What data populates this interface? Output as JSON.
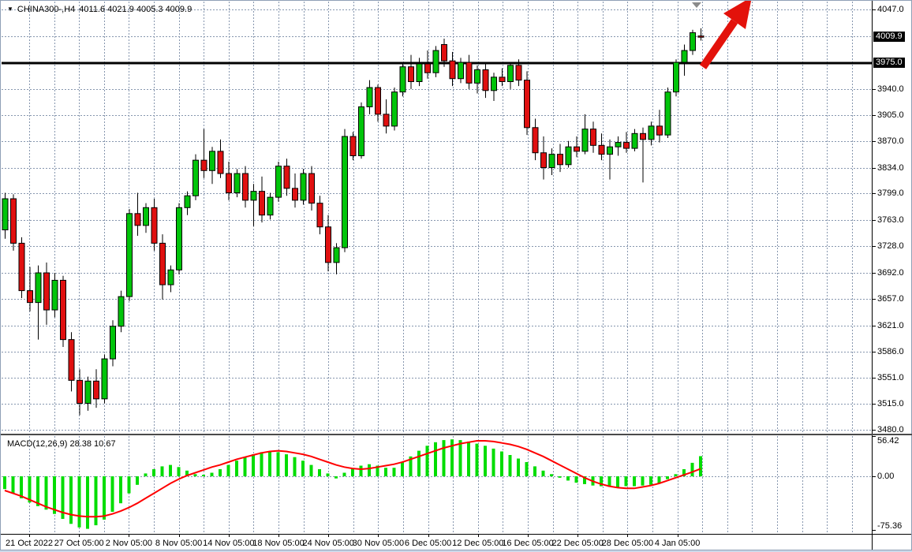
{
  "header": {
    "symbol": "CHINA300-,H4",
    "ohlc_text": "4011.6 4021.9 4005.3 4009.9"
  },
  "price_axis": {
    "current_tag": "4009.9",
    "line_tag": "3975.0",
    "tick_values": [
      4047.0,
      3940.0,
      3905.0,
      3870.0,
      3834.0,
      3799.0,
      3763.0,
      3728.0,
      3692.0,
      3657.0,
      3621.0,
      3586.0,
      3551.0,
      3515.0,
      3480.0
    ]
  },
  "time_axis": {
    "labels": [
      "21 Oct 2022",
      "27 Oct 05:00",
      "2 Nov 05:00",
      "8 Nov 05:00",
      "14 Nov 05:00",
      "18 Nov 05:00",
      "24 Nov 05:00",
      "30 Nov 05:00",
      "6 Dec 05:00",
      "12 Dec 05:00",
      "16 Dec 05:00",
      "22 Dec 05:00",
      "28 Dec 05:00",
      "4 Jan 05:00"
    ]
  },
  "macd": {
    "label": "MACD(12,26,9) 28.38 10.67",
    "scale_max": "56.42",
    "scale_zero": "0.00",
    "scale_min": "-75.36",
    "current_macd": 28.38,
    "current_signal": 10.67
  },
  "colors": {
    "up": "#00c40a",
    "down": "#e01010",
    "wick": "#000000",
    "macd_bar": "#00dd00",
    "signal_line": "#ff0000",
    "grid": "#8696ae",
    "hline": "#000000",
    "arrow": "#e3120b",
    "marker": "#8a8a8a",
    "tag_bg": "#000000",
    "tag_fg": "#ffffff"
  },
  "chart_data": [
    {
      "type": "candlestick",
      "title": "CHINA300-,H4 4011.6 4021.9 4005.3 4009.9",
      "timeframe": "H4",
      "grid": true,
      "ylim": [
        3480,
        4060
      ],
      "y_ticks": [
        4047.0,
        3940.0,
        3905.0,
        3870.0,
        3834.0,
        3799.0,
        3763.0,
        3728.0,
        3692.0,
        3657.0,
        3621.0,
        3586.0,
        3551.0,
        3515.0,
        3480.0
      ],
      "x_tick_labels": [
        "21 Oct 2022",
        "27 Oct 05:00",
        "2 Nov 05:00",
        "8 Nov 05:00",
        "14 Nov 05:00",
        "18 Nov 05:00",
        "24 Nov 05:00",
        "30 Nov 05:00",
        "6 Dec 05:00",
        "12 Dec 05:00",
        "16 Dec 05:00",
        "22 Dec 05:00",
        "28 Dec 05:00",
        "4 Jan 05:00"
      ],
      "annotations": {
        "horizontal_line_price": 3975.0,
        "current_price": 4009.9,
        "trend_arrow": "thick red up-right arrow from the 3975.0 line near the last candles, tip clipped at top edge",
        "shift_marker": "small gray down-triangle at top near x of last bars"
      },
      "ohlc": [
        [
          3750,
          3800,
          3738,
          3792
        ],
        [
          3792,
          3798,
          3722,
          3732
        ],
        [
          3732,
          3740,
          3658,
          3668
        ],
        [
          3668,
          3700,
          3640,
          3652
        ],
        [
          3652,
          3702,
          3602,
          3692
        ],
        [
          3692,
          3706,
          3622,
          3642
        ],
        [
          3642,
          3692,
          3632,
          3682
        ],
        [
          3682,
          3688,
          3592,
          3602
        ],
        [
          3602,
          3612,
          3532,
          3547
        ],
        [
          3547,
          3562,
          3500,
          3516
        ],
        [
          3516,
          3552,
          3506,
          3546
        ],
        [
          3546,
          3562,
          3510,
          3522
        ],
        [
          3522,
          3582,
          3516,
          3576
        ],
        [
          3576,
          3628,
          3566,
          3620
        ],
        [
          3620,
          3668,
          3612,
          3660
        ],
        [
          3660,
          3778,
          3654,
          3772
        ],
        [
          3772,
          3800,
          3742,
          3756
        ],
        [
          3756,
          3786,
          3746,
          3780
        ],
        [
          3780,
          3792,
          3722,
          3732
        ],
        [
          3732,
          3744,
          3656,
          3676
        ],
        [
          3676,
          3702,
          3666,
          3696
        ],
        [
          3696,
          3786,
          3690,
          3780
        ],
        [
          3780,
          3802,
          3770,
          3796
        ],
        [
          3796,
          3852,
          3790,
          3844
        ],
        [
          3844,
          3886,
          3820,
          3830
        ],
        [
          3830,
          3862,
          3812,
          3856
        ],
        [
          3856,
          3872,
          3820,
          3826
        ],
        [
          3826,
          3842,
          3790,
          3800
        ],
        [
          3800,
          3832,
          3794,
          3826
        ],
        [
          3826,
          3836,
          3780,
          3790
        ],
        [
          3790,
          3812,
          3755,
          3802
        ],
        [
          3802,
          3822,
          3760,
          3770
        ],
        [
          3770,
          3800,
          3764,
          3794
        ],
        [
          3794,
          3842,
          3788,
          3836
        ],
        [
          3836,
          3846,
          3796,
          3806
        ],
        [
          3806,
          3826,
          3780,
          3790
        ],
        [
          3790,
          3832,
          3784,
          3826
        ],
        [
          3826,
          3836,
          3776,
          3786
        ],
        [
          3786,
          3796,
          3744,
          3754
        ],
        [
          3754,
          3770,
          3694,
          3706
        ],
        [
          3706,
          3732,
          3690,
          3726
        ],
        [
          3726,
          3886,
          3720,
          3876
        ],
        [
          3876,
          3882,
          3844,
          3850
        ],
        [
          3850,
          3922,
          3846,
          3916
        ],
        [
          3916,
          3952,
          3906,
          3942
        ],
        [
          3942,
          3946,
          3896,
          3906
        ],
        [
          3906,
          3926,
          3880,
          3890
        ],
        [
          3890,
          3942,
          3884,
          3936
        ],
        [
          3936,
          3976,
          3930,
          3970
        ],
        [
          3970,
          3986,
          3940,
          3950
        ],
        [
          3950,
          3982,
          3944,
          3974
        ],
        [
          3974,
          3992,
          3954,
          3962
        ],
        [
          3962,
          3998,
          3956,
          3992
        ],
        [
          4000,
          4008,
          3970,
          3978
        ],
        [
          3978,
          3990,
          3944,
          3954
        ],
        [
          3954,
          3982,
          3948,
          3976
        ],
        [
          3976,
          3986,
          3940,
          3948
        ],
        [
          3948,
          3972,
          3934,
          3966
        ],
        [
          3966,
          3974,
          3928,
          3938
        ],
        [
          3938,
          3962,
          3924,
          3956
        ],
        [
          3956,
          3968,
          3944,
          3950
        ],
        [
          3950,
          3976,
          3940,
          3972
        ],
        [
          3972,
          3980,
          3944,
          3952
        ],
        [
          3952,
          3964,
          3878,
          3888
        ],
        [
          3888,
          3900,
          3844,
          3854
        ],
        [
          3854,
          3876,
          3818,
          3834
        ],
        [
          3834,
          3860,
          3824,
          3852
        ],
        [
          3852,
          3866,
          3828,
          3838
        ],
        [
          3838,
          3870,
          3834,
          3862
        ],
        [
          3862,
          3876,
          3848,
          3856
        ],
        [
          3856,
          3906,
          3852,
          3886
        ],
        [
          3886,
          3896,
          3854,
          3864
        ],
        [
          3864,
          3880,
          3844,
          3852
        ],
        [
          3852,
          3872,
          3818,
          3862
        ],
        [
          3862,
          3876,
          3850,
          3868
        ],
        [
          3868,
          3882,
          3854,
          3860
        ],
        [
          3860,
          3886,
          3856,
          3880
        ],
        [
          3880,
          3888,
          3814,
          3872
        ],
        [
          3872,
          3896,
          3864,
          3890
        ],
        [
          3890,
          3912,
          3868,
          3878
        ],
        [
          3878,
          3942,
          3874,
          3936
        ],
        [
          3936,
          3980,
          3930,
          3976
        ],
        [
          3976,
          4000,
          3958,
          3992
        ],
        [
          3992,
          4020,
          3986,
          4016
        ],
        [
          4011.6,
          4021.9,
          4005.3,
          4009.9
        ]
      ]
    },
    {
      "type": "bar",
      "title": "MACD(12,26,9) 28.38 10.67",
      "ylabel": "",
      "ylim": [
        -75.36,
        56.42
      ],
      "y_ticks": [
        56.42,
        0.0,
        -75.36
      ],
      "legend_position": "none",
      "values": [
        -18,
        -24,
        -31,
        -37,
        -42,
        -47,
        -53,
        -60,
        -67,
        -72,
        -74,
        -69,
        -61,
        -50,
        -38,
        -24,
        -12,
        4,
        10,
        14,
        16,
        13,
        8,
        3,
        2,
        5,
        10,
        16,
        22,
        27,
        31,
        34,
        35,
        34,
        31,
        27,
        22,
        16,
        10,
        4,
        -3,
        5,
        11,
        15,
        17,
        15,
        12,
        12,
        20,
        28,
        36,
        43,
        48,
        51,
        52,
        51,
        49,
        46,
        43,
        39,
        35,
        30,
        25,
        20,
        14,
        8,
        3,
        -2,
        -6,
        -9,
        -11,
        -13,
        -14,
        -15,
        -15,
        -14,
        -14,
        -13,
        -12,
        -10,
        -4,
        3,
        10,
        19,
        28.38
      ],
      "line_series": {
        "name": "signal",
        "color": "#ff0000",
        "values": [
          -20,
          -24,
          -28,
          -33,
          -38,
          -43,
          -47,
          -51,
          -54,
          -56,
          -57,
          -57,
          -56,
          -53,
          -49,
          -44,
          -38,
          -31,
          -24,
          -17,
          -10,
          -4,
          1,
          5,
          9,
          13,
          16,
          20,
          24,
          27,
          30,
          33,
          35,
          36,
          35,
          33,
          31,
          28,
          24,
          20,
          16,
          13,
          11,
          10,
          11,
          13,
          15,
          17,
          20,
          24,
          28,
          32,
          36,
          40,
          43,
          46,
          48,
          50,
          50,
          49,
          47,
          45,
          42,
          38,
          33,
          28,
          22,
          16,
          10,
          4,
          -2,
          -7,
          -11,
          -14,
          -16,
          -17,
          -17,
          -15,
          -13,
          -10,
          -6,
          -2,
          2,
          6,
          10.67
        ]
      }
    }
  ]
}
